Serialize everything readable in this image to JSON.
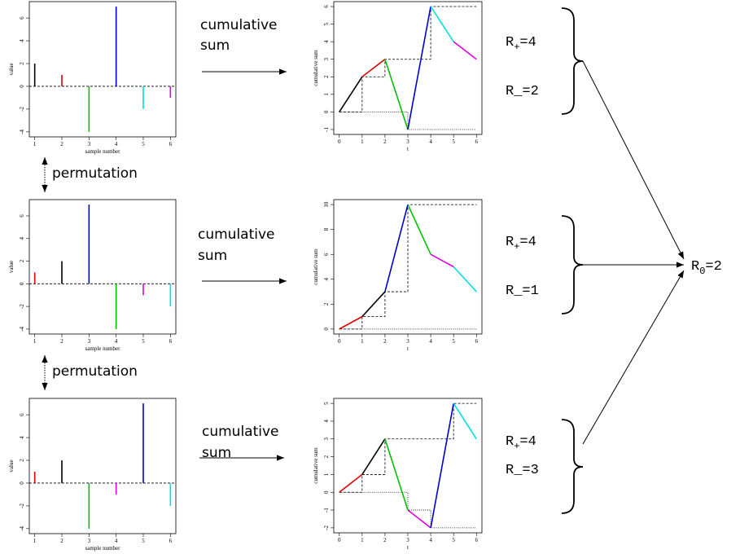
{
  "chart_data": [
    {
      "type": "bar",
      "x": [
        1,
        2,
        3,
        4,
        5,
        6
      ],
      "values": [
        2,
        1,
        -4,
        7,
        -2,
        -1
      ],
      "colors": [
        "#000000",
        "#e00000",
        "#00c000",
        "#0000cc",
        "#00e0e0",
        "#e000e0"
      ],
      "xlabel": "sample number",
      "ylabel": "value",
      "xlim": [
        0.8,
        6.2
      ],
      "ylim": [
        -4.44,
        7.44
      ],
      "xticks": [
        1,
        2,
        3,
        4,
        5,
        6
      ],
      "yticks": [
        -4,
        -2,
        0,
        2,
        4,
        6
      ]
    },
    {
      "type": "line",
      "x": [
        0,
        1,
        2,
        3,
        4,
        5,
        6
      ],
      "values": [
        0,
        2,
        3,
        -1,
        6,
        4,
        3
      ],
      "colors": [
        "#000000",
        "#e00000",
        "#00c000",
        "#0000cc",
        "#00e0e0",
        "#e000e0"
      ],
      "xlabel": "t",
      "ylabel": "cumulative sum",
      "xlim": [
        -0.24,
        6.24
      ],
      "ylim": [
        -1.28,
        6.28
      ],
      "xticks": [
        0,
        1,
        2,
        3,
        4,
        5,
        6
      ],
      "yticks": [
        -1,
        0,
        1,
        2,
        3,
        4,
        5,
        6
      ]
    },
    {
      "type": "bar",
      "x": [
        1,
        2,
        3,
        4,
        5,
        6
      ],
      "values": [
        1,
        2,
        7,
        -4,
        -1,
        -2
      ],
      "colors": [
        "#e00000",
        "#000000",
        "#0000cc",
        "#00c000",
        "#e000e0",
        "#00e0e0"
      ],
      "xlabel": "sample number",
      "ylabel": "value",
      "xlim": [
        0.8,
        6.2
      ],
      "ylim": [
        -4.44,
        7.44
      ],
      "xticks": [
        1,
        2,
        3,
        4,
        5,
        6
      ],
      "yticks": [
        -4,
        -2,
        0,
        2,
        4,
        6
      ]
    },
    {
      "type": "line",
      "x": [
        0,
        1,
        2,
        3,
        4,
        5,
        6
      ],
      "values": [
        0,
        1,
        3,
        10,
        6,
        5,
        3
      ],
      "colors": [
        "#e00000",
        "#000000",
        "#0000cc",
        "#00c000",
        "#e000e0",
        "#00e0e0"
      ],
      "xlabel": "t",
      "ylabel": "cumulative sum",
      "xlim": [
        -0.24,
        6.24
      ],
      "ylim": [
        -0.4,
        10.4
      ],
      "xticks": [
        0,
        1,
        2,
        3,
        4,
        5,
        6
      ],
      "yticks": [
        0,
        2,
        4,
        6,
        8,
        10
      ]
    },
    {
      "type": "bar",
      "x": [
        1,
        2,
        3,
        4,
        5,
        6
      ],
      "values": [
        1,
        2,
        -4,
        -1,
        7,
        -2
      ],
      "colors": [
        "#e00000",
        "#000000",
        "#00c000",
        "#e000e0",
        "#0000cc",
        "#00e0e0"
      ],
      "xlabel": "sample number",
      "ylabel": "value",
      "xlim": [
        0.8,
        6.2
      ],
      "ylim": [
        -4.44,
        7.44
      ],
      "xticks": [
        1,
        2,
        3,
        4,
        5,
        6
      ],
      "yticks": [
        -4,
        -2,
        0,
        2,
        4,
        6
      ]
    },
    {
      "type": "line",
      "x": [
        0,
        1,
        2,
        3,
        4,
        5,
        6
      ],
      "values": [
        0,
        1,
        3,
        -1,
        -2,
        5,
        3
      ],
      "colors": [
        "#e00000",
        "#000000",
        "#00c000",
        "#e000e0",
        "#0000cc",
        "#00e0e0"
      ],
      "xlabel": "t",
      "ylabel": "cumulative sum",
      "xlim": [
        -0.24,
        6.24
      ],
      "ylim": [
        -2.28,
        5.28
      ],
      "xticks": [
        0,
        1,
        2,
        3,
        4,
        5,
        6
      ],
      "yticks": [
        -2,
        -1,
        0,
        1,
        2,
        3,
        4,
        5
      ]
    }
  ],
  "rows": [
    {
      "operation": [
        "cumulative",
        "sum"
      ],
      "r_plus": {
        "base": "R",
        "sub": "+",
        "rest": "=4"
      },
      "r_minus": "R_=2"
    },
    {
      "operation": [
        "cumulative",
        "sum"
      ],
      "r_plus": {
        "base": "R",
        "sub": "+",
        "rest": "=4"
      },
      "r_minus": "R_=1"
    },
    {
      "operation": [
        "cumulative",
        "sum"
      ],
      "r_plus": {
        "base": "R",
        "sub": "+",
        "rest": "=4"
      },
      "r_minus": "R_=3"
    }
  ],
  "permutations": [
    "permutation",
    "permutation"
  ],
  "result": {
    "base": "R",
    "sub": "0",
    "rest": "=2"
  }
}
